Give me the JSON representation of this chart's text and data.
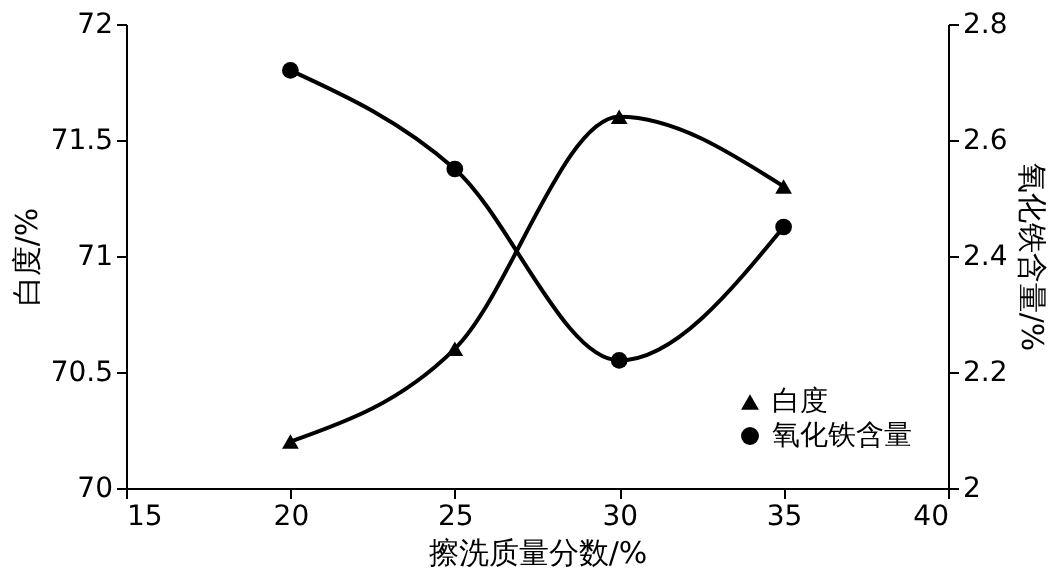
{
  "chart_data": {
    "type": "line",
    "xlabel": "擦洗质量分数/%",
    "ylabel": "白度/%",
    "y2label": "氧化铁含量/%",
    "x": [
      20,
      25,
      30,
      35
    ],
    "series": [
      {
        "name": "白度",
        "color": "#000000",
        "marker": "triangle",
        "values": [
          70.2,
          70.6,
          71.6,
          71.3
        ]
      },
      {
        "name": "氧化铁含量",
        "color": "#000000",
        "marker": "circle",
        "axis": "y2",
        "values": [
          2.72,
          2.55,
          2.22,
          2.45
        ]
      }
    ],
    "xlim": [
      15,
      40
    ],
    "xticks": [
      15,
      20,
      25,
      30,
      35,
      40
    ],
    "ylim": [
      70,
      72
    ],
    "yticks": [
      70,
      70.5,
      71,
      71.5,
      72
    ],
    "y2lim": [
      2,
      2.8
    ],
    "y2ticks": [
      2,
      2.2,
      2.4,
      2.6,
      2.8
    ],
    "grid": false,
    "legend": "bottom right"
  }
}
